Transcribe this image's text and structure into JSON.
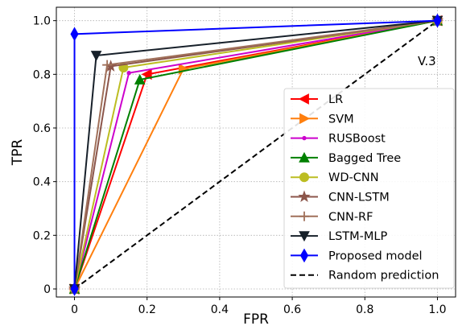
{
  "chart_data": {
    "type": "line",
    "title": "",
    "xlabel": "FPR",
    "ylabel": "TPR",
    "xlim": [
      -0.05,
      1.05
    ],
    "ylim": [
      -0.03,
      1.05
    ],
    "xticks": [
      0,
      0.2,
      0.4,
      0.6,
      0.8,
      1.0
    ],
    "xtick_labels": [
      "0",
      "0.2",
      "0.4",
      "0.6",
      "0.8",
      "1.0"
    ],
    "yticks": [
      0,
      0.2,
      0.4,
      0.6,
      0.8,
      1.0
    ],
    "ytick_labels": [
      "0",
      "0.2",
      "0.4",
      "0.6",
      "0.8",
      "1.0"
    ],
    "grid": true,
    "legend_position": "lower-right",
    "annotation": "V.3",
    "series": [
      {
        "name": "LR",
        "color": "#ff0000",
        "marker": "triangle-left",
        "points": [
          [
            0,
            0
          ],
          [
            0.2,
            0.8
          ],
          [
            1,
            1
          ]
        ]
      },
      {
        "name": "SVM",
        "color": "#ff7f0e",
        "marker": "triangle-right",
        "points": [
          [
            0,
            0
          ],
          [
            0.3,
            0.82
          ],
          [
            1,
            1
          ]
        ]
      },
      {
        "name": "RUSBoost",
        "color": "#cc00cc",
        "marker": "dot",
        "points": [
          [
            0,
            0
          ],
          [
            0.15,
            0.805
          ],
          [
            1,
            1
          ]
        ]
      },
      {
        "name": "Bagged Tree",
        "color": "#008000",
        "marker": "triangle-up",
        "points": [
          [
            0,
            0
          ],
          [
            0.18,
            0.78
          ],
          [
            1,
            1
          ]
        ]
      },
      {
        "name": "WD-CNN",
        "color": "#bcbd22",
        "marker": "circle",
        "points": [
          [
            0,
            0
          ],
          [
            0.135,
            0.825
          ],
          [
            1,
            1
          ]
        ]
      },
      {
        "name": "CNN-LSTM",
        "color": "#8c564b",
        "marker": "star",
        "points": [
          [
            0,
            0
          ],
          [
            0.1,
            0.83
          ],
          [
            1,
            1
          ]
        ]
      },
      {
        "name": "CNN-RF",
        "color": "#a0705a",
        "marker": "plus",
        "points": [
          [
            0,
            0
          ],
          [
            0.09,
            0.835
          ],
          [
            1,
            1
          ]
        ]
      },
      {
        "name": "LSTM-MLP",
        "color": "#17202a",
        "marker": "triangle-down",
        "points": [
          [
            0,
            0
          ],
          [
            0.06,
            0.87
          ],
          [
            1,
            1
          ]
        ]
      },
      {
        "name": "Proposed model",
        "color": "#0000ff",
        "marker": "diamond",
        "points": [
          [
            0,
            0
          ],
          [
            0,
            0.95
          ],
          [
            1,
            1
          ]
        ]
      },
      {
        "name": "Random prediction",
        "color": "#000000",
        "marker": "none",
        "dashed": true,
        "points": [
          [
            0,
            0
          ],
          [
            1,
            1
          ]
        ]
      }
    ]
  }
}
